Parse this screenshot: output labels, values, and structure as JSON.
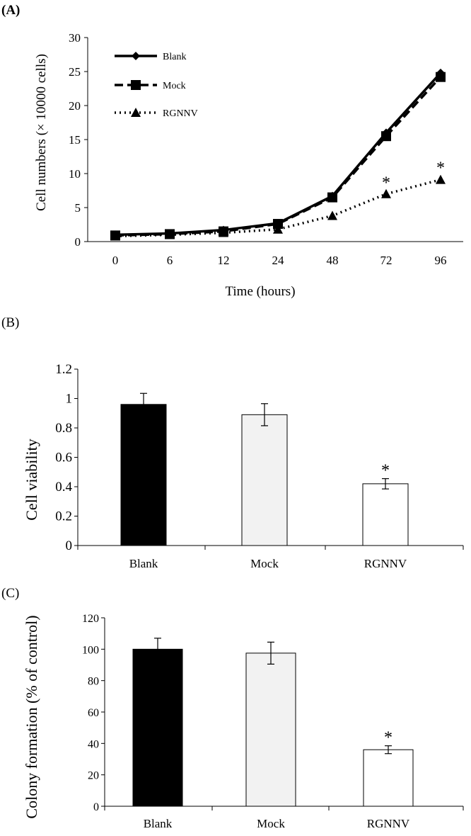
{
  "chart_data": [
    {
      "panel": "(A)",
      "type": "line",
      "categories": [
        "0",
        "6",
        "12",
        "24",
        "48",
        "72",
        "96"
      ],
      "xlabel": "Time (hours)",
      "ylabel": "Cell numbers (× 10000 cells)",
      "ylim": [
        0,
        30
      ],
      "yticks": [
        0,
        5,
        10,
        15,
        20,
        25,
        30
      ],
      "grid": false,
      "legend_position": "top-left",
      "series": [
        {
          "name": "Blank",
          "values": [
            1.0,
            1.2,
            1.7,
            2.7,
            6.7,
            16.0,
            24.8
          ],
          "color": "#000000",
          "line": "solid",
          "marker": "diamond"
        },
        {
          "name": "Mock",
          "values": [
            0.9,
            1.1,
            1.5,
            2.6,
            6.5,
            15.5,
            24.2
          ],
          "color": "#000000",
          "line": "dashed",
          "marker": "square"
        },
        {
          "name": "RGNNV",
          "values": [
            0.8,
            1.0,
            1.3,
            1.8,
            3.8,
            7.0,
            9.1
          ],
          "color": "#000000",
          "line": "dotted",
          "marker": "triangle"
        }
      ],
      "annotations": [
        {
          "category": "72",
          "y": 9.3,
          "text": "*"
        },
        {
          "category": "96",
          "y": 11.5,
          "text": "*"
        }
      ]
    },
    {
      "panel": "(B)",
      "type": "bar",
      "categories": [
        "Blank",
        "Mock",
        "RGNNV"
      ],
      "values": [
        0.96,
        0.89,
        0.42
      ],
      "errors": [
        0.075,
        0.075,
        0.035
      ],
      "bar_colors": [
        "#000000",
        "#f2f2f2",
        "#ffffff"
      ],
      "ylabel": "Cell viability",
      "ylim": [
        0,
        1.2
      ],
      "yticks": [
        "0",
        "0.2",
        "0.4",
        "0.6",
        "0.8",
        "1",
        "1.2"
      ],
      "annotations": [
        {
          "category": "RGNNV",
          "text": "*"
        }
      ]
    },
    {
      "panel": "(C)",
      "type": "bar",
      "categories": [
        "Blank",
        "Mock",
        "RGNNV"
      ],
      "values": [
        100,
        97.5,
        36
      ],
      "errors": [
        7,
        7,
        2.5
      ],
      "bar_colors": [
        "#000000",
        "#f2f2f2",
        "#ffffff"
      ],
      "ylabel": "Colony formation (% of control)",
      "ylim": [
        0,
        120
      ],
      "yticks": [
        "0",
        "20",
        "40",
        "60",
        "80",
        "100",
        "120"
      ],
      "annotations": [
        {
          "category": "RGNNV",
          "text": "*"
        }
      ]
    }
  ]
}
